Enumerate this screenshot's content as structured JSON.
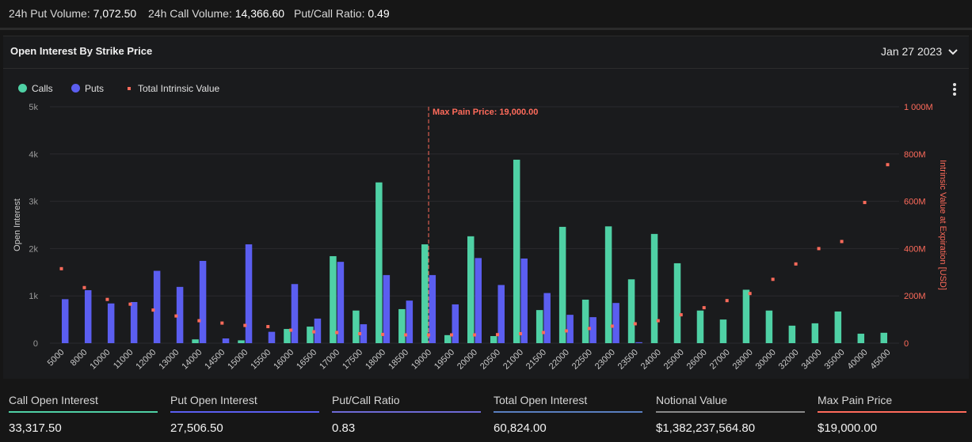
{
  "topbar": {
    "put_volume_label": "24h Put Volume:",
    "put_volume": "7,072.50",
    "call_volume_label": "24h Call Volume:",
    "call_volume": "14,366.60",
    "ratio_label": "Put/Call Ratio:",
    "ratio": "0.49"
  },
  "panel": {
    "title": "Open Interest By Strike Price",
    "date": "Jan 27 2023"
  },
  "legend": {
    "calls": "Calls",
    "puts": "Puts",
    "intrinsic": "Total Intrinsic Value"
  },
  "colors": {
    "calls": "#4fd1a5",
    "puts": "#5b5ef0",
    "intrinsic": "#ff6b5b",
    "grid": "#2a2b2e",
    "axis_text": "#9a9a9a"
  },
  "stats": [
    {
      "label": "Call Open Interest",
      "value": "33,317.50",
      "color": "#4fd1a5"
    },
    {
      "label": "Put Open Interest",
      "value": "27,506.50",
      "color": "#5b5ef0"
    },
    {
      "label": "Put/Call Ratio",
      "value": "0.83",
      "color": "#6e6ad6"
    },
    {
      "label": "Total Open Interest",
      "value": "60,824.00",
      "color": "#5a7fc0"
    },
    {
      "label": "Notional Value",
      "value": "$1,382,237,564.80",
      "color": "#8a8a8a"
    },
    {
      "label": "Max Pain Price",
      "value": "$19,000.00",
      "color": "#ff6b5b"
    }
  ],
  "chart_data": {
    "type": "bar",
    "title": "Open Interest By Strike Price",
    "xlabel": "",
    "ylabel": "Open Interest",
    "y2label": "Intrinsic Value at Expiration [USD]",
    "ylim": [
      0,
      5000
    ],
    "y2lim": [
      0,
      1000
    ],
    "yticks": [
      "0",
      "1k",
      "2k",
      "3k",
      "4k",
      "5k"
    ],
    "y2ticks": [
      "0",
      "200M",
      "400M",
      "600M",
      "800M",
      "1 000M"
    ],
    "categories": [
      "5000",
      "8000",
      "10000",
      "11000",
      "12000",
      "13000",
      "14000",
      "14500",
      "15000",
      "15500",
      "16000",
      "16500",
      "17000",
      "17500",
      "18000",
      "18500",
      "19000",
      "19500",
      "20000",
      "20500",
      "21000",
      "21500",
      "22000",
      "22500",
      "23000",
      "23500",
      "24000",
      "25000",
      "26000",
      "27000",
      "28000",
      "30000",
      "32000",
      "34000",
      "35000",
      "40000",
      "45000"
    ],
    "series": [
      {
        "name": "Calls",
        "axis": "left",
        "values": [
          0,
          0,
          0,
          0,
          0,
          0,
          80,
          0,
          60,
          0,
          300,
          350,
          1840,
          690,
          3400,
          720,
          2090,
          170,
          2260,
          150,
          3880,
          700,
          2460,
          920,
          2470,
          1350,
          2310,
          1690,
          690,
          500,
          1130,
          690,
          370,
          420,
          670,
          200,
          220
        ]
      },
      {
        "name": "Puts",
        "axis": "left",
        "values": [
          930,
          1120,
          840,
          870,
          1530,
          1190,
          1740,
          100,
          2090,
          240,
          1250,
          520,
          1720,
          400,
          1440,
          900,
          1440,
          820,
          1800,
          1230,
          1790,
          1060,
          600,
          550,
          850,
          20,
          0,
          0,
          0,
          0,
          0,
          0,
          0,
          0,
          0,
          0,
          0
        ]
      },
      {
        "name": "Total Intrinsic Value",
        "axis": "right",
        "unit": "M",
        "values": [
          315,
          235,
          185,
          165,
          140,
          115,
          95,
          85,
          75,
          70,
          55,
          48,
          45,
          40,
          37,
          35,
          35,
          35,
          35,
          36,
          40,
          45,
          52,
          62,
          72,
          82,
          95,
          120,
          150,
          180,
          210,
          270,
          335,
          400,
          430,
          595,
          755
        ]
      }
    ],
    "annotation": {
      "label": "Max Pain Price: 19,000.00",
      "x": "19000"
    }
  }
}
